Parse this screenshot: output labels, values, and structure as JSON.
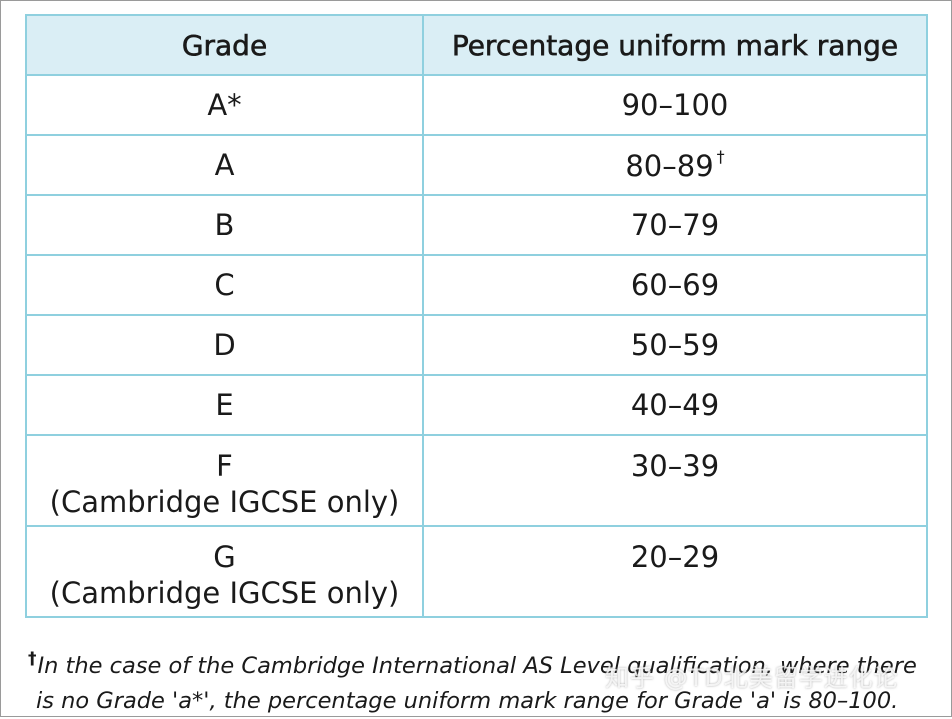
{
  "table": {
    "headers": {
      "grade": "Grade",
      "range": "Percentage uniform mark range"
    },
    "rows": [
      {
        "grade": "A*",
        "note": "",
        "range": "90–100",
        "mark": ""
      },
      {
        "grade": "A",
        "note": "",
        "range": "80–89",
        "mark": "†"
      },
      {
        "grade": "B",
        "note": "",
        "range": "70–79",
        "mark": ""
      },
      {
        "grade": "C",
        "note": "",
        "range": "60–69",
        "mark": ""
      },
      {
        "grade": "D",
        "note": "",
        "range": "50–59",
        "mark": ""
      },
      {
        "grade": "E",
        "note": "",
        "range": "40–49",
        "mark": ""
      },
      {
        "grade": "F",
        "note": "(Cambridge IGCSE only)",
        "range": "30–39",
        "mark": ""
      },
      {
        "grade": "G",
        "note": "(Cambridge IGCSE only)",
        "range": "20–29",
        "mark": ""
      }
    ]
  },
  "footnote": {
    "marker": "†",
    "line1": "In the case of the Cambridge International AS Level qualification, where there",
    "line2": "is no Grade 'a*', the percentage uniform mark range for Grade 'a' is 80–100."
  },
  "watermark": "知乎 @TD北美留学进化论"
}
